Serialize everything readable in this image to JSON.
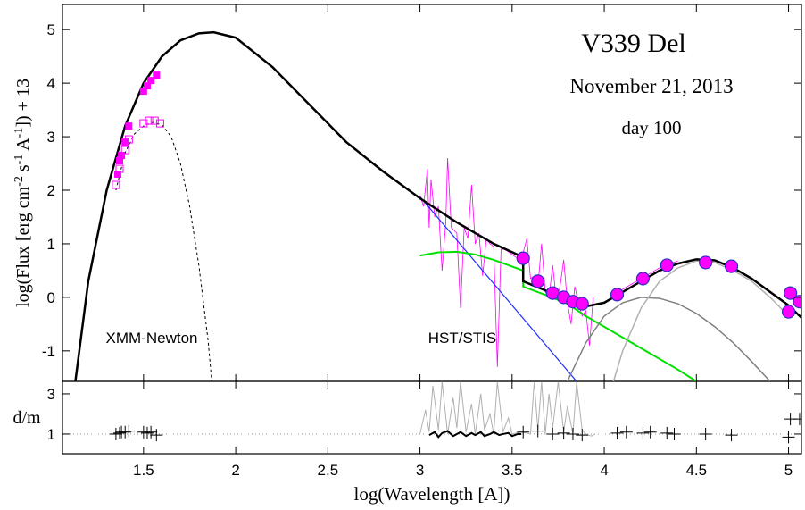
{
  "chart_data": [
    {
      "type": "line",
      "ylabel": [
        "log(Flux [erg cm",
        "-2",
        " s",
        "-1",
        " A",
        "-1",
        "]) + 13"
      ],
      "annotations": [
        "V339 Del",
        "November 21, 2013",
        "day 100",
        "XMM-Newton",
        "HST/STIS"
      ],
      "xlim": [
        1.06,
        5.07
      ],
      "xticks": [
        1.5,
        2,
        2.5,
        3,
        3.5,
        4,
        4.5,
        5
      ],
      "ylim": [
        -1.57,
        5.47
      ],
      "yticks": [
        -1,
        0,
        1,
        2,
        3,
        4,
        5
      ],
      "series": [
        {
          "style": "line",
          "color": "#ff00ff",
          "width": 0.8,
          "x": [
            3.0,
            3.02,
            3.04,
            3.05,
            3.06,
            3.08,
            3.1,
            3.12,
            3.14,
            3.15,
            3.17,
            3.2,
            3.22,
            3.24,
            3.26,
            3.28,
            3.3,
            3.32,
            3.34,
            3.36,
            3.38,
            3.4,
            3.42,
            3.44,
            3.46,
            3.48,
            3.5,
            3.52,
            3.55,
            3.58,
            3.6,
            3.62,
            3.64,
            3.66,
            3.68,
            3.7,
            3.72,
            3.74,
            3.76,
            3.78,
            3.8,
            3.82,
            3.84,
            3.86,
            3.88,
            3.9,
            3.92,
            3.94
          ],
          "y": [
            1.9,
            1.7,
            2.4,
            1.3,
            2.2,
            1.5,
            1.7,
            0.5,
            1.4,
            2.6,
            1.3,
            1.2,
            -0.2,
            1.3,
            1.1,
            2.1,
            1.0,
            1.2,
            0.4,
            1.1,
            1.0,
            0.95,
            -1.3,
            0.9,
            0.9,
            0.85,
            0.8,
            0.75,
            0.7,
            1.1,
            0.35,
            0.4,
            0.2,
            1.0,
            0.1,
            0.0,
            0.6,
            -0.05,
            0.2,
            0.7,
            -0.1,
            -0.5,
            0.2,
            -0.1,
            -0.35,
            -0.25,
            -0.9,
            0.0
          ]
        },
        {
          "style": "line",
          "color": "#ff00ff",
          "width": 0.8,
          "x": [
            4.05,
            4.1,
            4.15,
            4.2,
            4.25,
            4.3,
            4.35,
            4.4
          ],
          "y": [
            0.05,
            0.15,
            0.25,
            0.35,
            0.45,
            0.55,
            0.62,
            0.68
          ]
        },
        {
          "style": "line",
          "color": "#2030ff",
          "width": 1.2,
          "x": [
            3.0,
            3.85
          ],
          "y": [
            1.88,
            -1.57
          ]
        },
        {
          "style": "line",
          "color": "#00e000",
          "width": 2,
          "x": [
            3.0,
            3.1,
            3.2,
            3.3,
            3.4,
            3.56,
            3.56,
            3.7,
            3.8,
            3.9,
            4.0,
            4.2,
            4.4,
            4.5
          ],
          "y": [
            0.78,
            0.84,
            0.85,
            0.8,
            0.7,
            0.5,
            0.2,
            0.02,
            -0.12,
            -0.35,
            -0.55,
            -0.95,
            -1.35,
            -1.57
          ]
        },
        {
          "style": "line",
          "color": "#808080",
          "width": 1.5,
          "x": [
            3.8,
            3.9,
            4.0,
            4.1,
            4.2,
            4.3,
            4.4,
            4.5,
            4.6,
            4.7,
            4.8,
            4.9
          ],
          "y": [
            -1.57,
            -0.85,
            -0.35,
            -0.1,
            0.0,
            -0.02,
            -0.12,
            -0.3,
            -0.55,
            -0.85,
            -1.2,
            -1.57
          ]
        },
        {
          "style": "line",
          "color": "#b0b0b0",
          "width": 1.5,
          "x": [
            4.05,
            4.1,
            4.2,
            4.3,
            4.4,
            4.5,
            4.6,
            4.7,
            4.8,
            4.9,
            5.0
          ],
          "y": [
            -1.57,
            -1.0,
            -0.2,
            0.3,
            0.55,
            0.68,
            0.65,
            0.5,
            0.3,
            0.0,
            -0.35
          ]
        },
        {
          "style": "dashed",
          "color": "#000000",
          "width": 1,
          "x": [
            1.35,
            1.4,
            1.45,
            1.5,
            1.55,
            1.6,
            1.65,
            1.7,
            1.75,
            1.8,
            1.85,
            1.87
          ],
          "y": [
            2.0,
            2.7,
            3.05,
            3.2,
            3.27,
            3.22,
            3.0,
            2.5,
            1.7,
            0.6,
            -0.8,
            -1.57
          ]
        },
        {
          "style": "line",
          "color": "#000000",
          "width": 2.5,
          "x": [
            1.13,
            1.2,
            1.3,
            1.4,
            1.5,
            1.6,
            1.7,
            1.8,
            1.88,
            2.0,
            2.2,
            2.4,
            2.6,
            2.8,
            3.0,
            3.2,
            3.4,
            3.56,
            3.56,
            3.7,
            3.8,
            3.9,
            4.0,
            4.1,
            4.2,
            4.3,
            4.4,
            4.5,
            4.6,
            4.7,
            4.8,
            4.9,
            5.0,
            5.07
          ],
          "y": [
            -1.57,
            0.3,
            2.0,
            3.2,
            4.0,
            4.5,
            4.8,
            4.93,
            4.95,
            4.85,
            4.3,
            3.6,
            2.9,
            2.35,
            1.85,
            1.4,
            1.0,
            0.75,
            0.3,
            0.1,
            -0.05,
            -0.17,
            -0.1,
            0.1,
            0.3,
            0.5,
            0.63,
            0.71,
            0.69,
            0.55,
            0.35,
            0.1,
            -0.15,
            -0.38
          ]
        },
        {
          "style": "open-square",
          "color": "#ff00ff",
          "x": [
            1.35,
            1.37,
            1.4,
            1.42,
            1.5,
            1.53,
            1.56,
            1.59
          ],
          "y": [
            2.1,
            2.4,
            2.75,
            2.95,
            3.25,
            3.3,
            3.3,
            3.25
          ]
        },
        {
          "style": "filled-square",
          "color": "#ff00ff",
          "x": [
            1.36,
            1.37,
            1.38,
            1.4,
            1.42,
            1.5,
            1.52,
            1.54,
            1.57
          ],
          "y": [
            2.3,
            2.55,
            2.65,
            2.9,
            3.2,
            3.85,
            3.95,
            4.05,
            4.15
          ]
        },
        {
          "style": "circle",
          "color": "#ff00ff",
          "edgecolor": "#3030c0",
          "x": [
            3.56,
            3.64,
            3.72,
            3.78,
            3.83,
            3.88,
            4.07,
            4.21,
            4.34,
            4.55,
            4.69,
            5.0,
            5.01,
            5.06
          ],
          "y": [
            0.73,
            0.3,
            0.08,
            0.0,
            -0.08,
            -0.12,
            0.05,
            0.35,
            0.6,
            0.65,
            0.58,
            -0.27,
            0.08,
            -0.08
          ]
        }
      ]
    },
    {
      "type": "line",
      "xlabel": "log(Wavelength [A])",
      "ylabel": "d/m",
      "xlim": [
        1.06,
        5.07
      ],
      "xticks": [
        1.5,
        2,
        2.5,
        3,
        3.5,
        4,
        4.5,
        5
      ],
      "ylim": [
        0.02,
        3.62
      ],
      "yticks": [
        1,
        3
      ],
      "reference_line": 1,
      "series": [
        {
          "style": "line",
          "color": "#b0b0b0",
          "width": 1,
          "x": [
            3.0,
            3.03,
            3.05,
            3.07,
            3.1,
            3.12,
            3.15,
            3.18,
            3.2,
            3.22,
            3.25,
            3.28,
            3.3,
            3.33,
            3.35,
            3.38,
            3.4,
            3.42,
            3.45,
            3.48,
            3.5,
            3.55,
            3.6,
            3.62,
            3.64,
            3.66,
            3.68,
            3.7,
            3.72,
            3.75,
            3.78,
            3.8,
            3.83,
            3.85,
            3.88,
            3.9,
            3.93,
            3.95
          ],
          "y": [
            1.0,
            2.2,
            1.1,
            3.4,
            1.2,
            3.6,
            1.0,
            2.8,
            1.3,
            3.6,
            1.1,
            2.5,
            1.0,
            3.0,
            1.2,
            2.0,
            1.0,
            3.6,
            1.1,
            1.8,
            1.0,
            1.1,
            1.0,
            3.6,
            1.2,
            3.6,
            1.0,
            3.0,
            1.3,
            3.6,
            1.1,
            2.4,
            1.0,
            3.6,
            1.2,
            1.0,
            0.9,
            1.0
          ]
        },
        {
          "style": "line",
          "color": "#000000",
          "width": 2,
          "x": [
            3.05,
            3.08,
            3.1,
            3.12,
            3.15,
            3.18,
            3.2,
            3.22,
            3.25,
            3.28,
            3.3,
            3.33,
            3.35,
            3.38,
            3.4,
            3.43,
            3.45,
            3.48,
            3.5,
            3.53,
            3.55
          ],
          "y": [
            0.95,
            1.1,
            0.85,
            1.05,
            1.15,
            0.9,
            1.0,
            1.1,
            0.9,
            1.05,
            0.95,
            1.1,
            0.9,
            1.0,
            1.1,
            0.95,
            1.0,
            1.05,
            0.9,
            1.0,
            1.0
          ]
        },
        {
          "style": "cross",
          "color": "#000000",
          "x": [
            1.35,
            1.37,
            1.38,
            1.4,
            1.42,
            1.5,
            1.52,
            1.54,
            1.57,
            3.56,
            3.64,
            3.72,
            3.78,
            3.83,
            3.88,
            4.07,
            4.12,
            4.21,
            4.25,
            4.34,
            4.38,
            4.55,
            4.69,
            5.0,
            5.01,
            5.06
          ],
          "y": [
            1.0,
            1.05,
            1.1,
            1.1,
            1.15,
            1.1,
            1.05,
            1.1,
            0.95,
            1.1,
            1.15,
            1.0,
            1.05,
            1.0,
            0.95,
            1.05,
            1.1,
            1.05,
            1.1,
            1.05,
            1.0,
            1.0,
            0.95,
            0.85,
            1.75,
            1.75
          ]
        }
      ]
    }
  ]
}
